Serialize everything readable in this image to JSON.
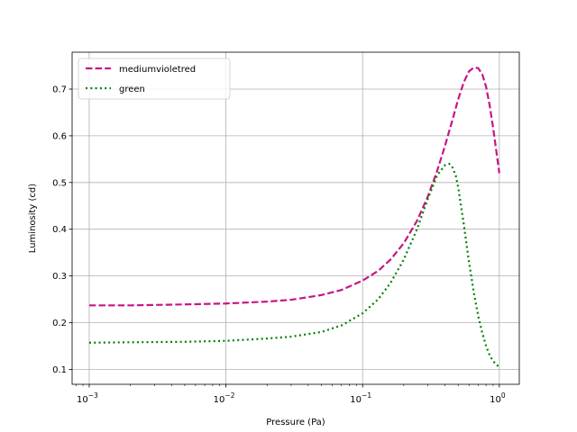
{
  "chart_data": {
    "type": "line",
    "title": "",
    "xlabel": "Pressure (Pa)",
    "ylabel": "Luminosity (cd)",
    "xscale": "log",
    "xlim": [
      0.00075,
      1.4
    ],
    "ylim": [
      0.068,
      0.779
    ],
    "grid": true,
    "legend_position": "top-left",
    "x_ticks": [
      {
        "value": 0.001,
        "base": "10",
        "exp": "−3"
      },
      {
        "value": 0.01,
        "base": "10",
        "exp": "−2"
      },
      {
        "value": 0.1,
        "base": "10",
        "exp": "−1"
      },
      {
        "value": 1,
        "base": "10",
        "exp": "0"
      }
    ],
    "y_ticks": [
      "0.1",
      "0.2",
      "0.3",
      "0.4",
      "0.5",
      "0.6",
      "0.7"
    ],
    "series": [
      {
        "name": "mediumvioletred",
        "color": "#c71585",
        "dash": "dashed",
        "x": [
          0.001,
          0.002,
          0.005,
          0.01,
          0.02,
          0.03,
          0.05,
          0.07,
          0.1,
          0.13,
          0.16,
          0.2,
          0.25,
          0.3,
          0.35,
          0.4,
          0.45,
          0.5,
          0.55,
          0.6,
          0.65,
          0.7,
          0.75,
          0.8,
          0.85,
          0.9,
          0.95,
          1.0
        ],
        "y": [
          0.237,
          0.237,
          0.239,
          0.241,
          0.245,
          0.249,
          0.259,
          0.27,
          0.29,
          0.311,
          0.335,
          0.37,
          0.418,
          0.47,
          0.524,
          0.578,
          0.63,
          0.678,
          0.715,
          0.738,
          0.746,
          0.745,
          0.732,
          0.705,
          0.665,
          0.618,
          0.568,
          0.52
        ]
      },
      {
        "name": "green",
        "color": "#008000",
        "dash": "dotted",
        "x": [
          0.001,
          0.002,
          0.005,
          0.01,
          0.02,
          0.03,
          0.05,
          0.07,
          0.1,
          0.13,
          0.16,
          0.2,
          0.25,
          0.3,
          0.35,
          0.4,
          0.43,
          0.45,
          0.48,
          0.5,
          0.55,
          0.6,
          0.65,
          0.7,
          0.75,
          0.8,
          0.85,
          0.9,
          0.95,
          1.0
        ],
        "y": [
          0.157,
          0.158,
          0.159,
          0.161,
          0.166,
          0.17,
          0.18,
          0.194,
          0.22,
          0.25,
          0.285,
          0.335,
          0.4,
          0.465,
          0.515,
          0.537,
          0.54,
          0.535,
          0.515,
          0.49,
          0.41,
          0.33,
          0.265,
          0.215,
          0.178,
          0.15,
          0.13,
          0.118,
          0.11,
          0.105
        ]
      }
    ]
  }
}
